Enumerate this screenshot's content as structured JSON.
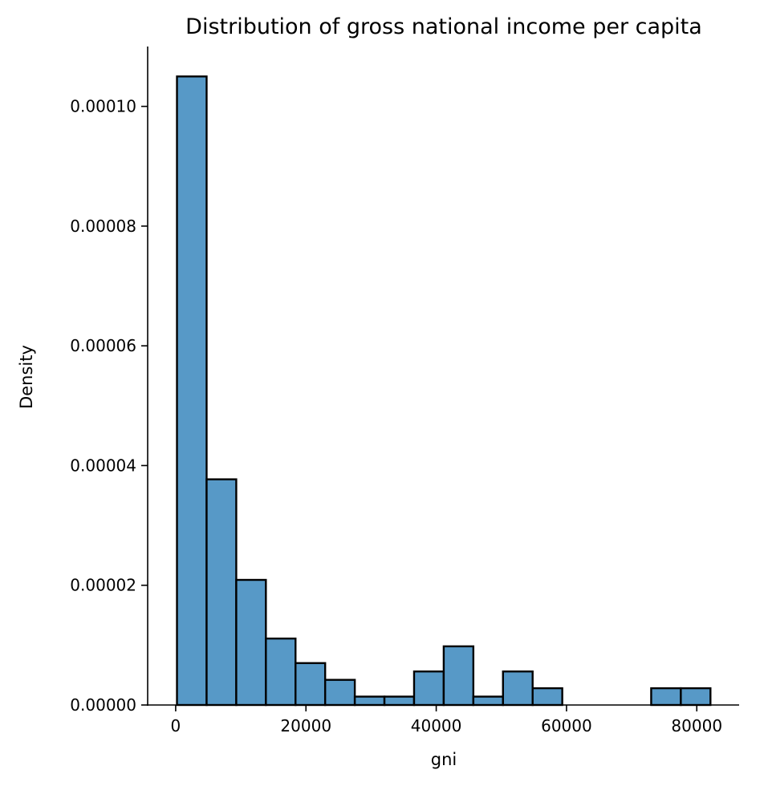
{
  "chart_data": {
    "type": "bar",
    "title": "Distribution of gross national income per capita",
    "xlabel": "gni",
    "ylabel": "Density",
    "xlim": [
      -4300,
      86500
    ],
    "ylim": [
      0,
      0.00011
    ],
    "grid": false,
    "x_ticks": [
      0,
      20000,
      40000,
      60000,
      80000
    ],
    "x_tick_labels": [
      "0",
      "20000",
      "40000",
      "60000",
      "80000"
    ],
    "y_ticks": [
      0,
      2e-05,
      4e-05,
      6e-05,
      8e-05,
      0.0001
    ],
    "y_tick_labels": [
      "0.00000",
      "0.00002",
      "0.00004",
      "0.00006",
      "0.00008",
      "0.00010"
    ],
    "bar_color": "#5799c7",
    "edge_color": "#000000",
    "bins": [
      {
        "x0": 200,
        "x1": 4750,
        "value": 0.000105
      },
      {
        "x0": 4750,
        "x1": 9300,
        "value": 3.77e-05
      },
      {
        "x0": 9300,
        "x1": 13850,
        "value": 2.09e-05
      },
      {
        "x0": 13850,
        "x1": 18400,
        "value": 1.11e-05
      },
      {
        "x0": 18400,
        "x1": 22950,
        "value": 7e-06
      },
      {
        "x0": 22950,
        "x1": 27500,
        "value": 4.2e-06
      },
      {
        "x0": 27500,
        "x1": 32050,
        "value": 1.4e-06
      },
      {
        "x0": 32050,
        "x1": 36600,
        "value": 1.4e-06
      },
      {
        "x0": 36600,
        "x1": 41150,
        "value": 5.6e-06
      },
      {
        "x0": 41150,
        "x1": 45700,
        "value": 9.8e-06
      },
      {
        "x0": 45700,
        "x1": 50250,
        "value": 1.4e-06
      },
      {
        "x0": 50250,
        "x1": 54800,
        "value": 5.6e-06
      },
      {
        "x0": 54800,
        "x1": 59350,
        "value": 2.8e-06
      },
      {
        "x0": 59350,
        "x1": 63900,
        "value": 0
      },
      {
        "x0": 63900,
        "x1": 68450,
        "value": 0
      },
      {
        "x0": 68450,
        "x1": 73000,
        "value": 0
      },
      {
        "x0": 73000,
        "x1": 77550,
        "value": 2.8e-06
      },
      {
        "x0": 77550,
        "x1": 82100,
        "value": 2.8e-06
      }
    ]
  }
}
